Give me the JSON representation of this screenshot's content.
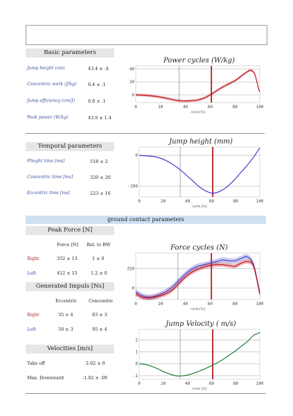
{
  "basic": {
    "title": "Basic parameters",
    "rows": [
      {
        "label": "Jump height (cm)",
        "value": "43.4 ± .4"
      },
      {
        "label": "Concentric work (J/kg)",
        "value": "6.4 ± .1"
      },
      {
        "label": "Jump efficiency (cm/J)",
        "value": "6.8 ± .1"
      },
      {
        "label": "Peak power (W/kg)",
        "value": "43.9 ± 1.4"
      }
    ]
  },
  "temporal": {
    "title": "Temporal parameters",
    "rows": [
      {
        "label": "Flieght time [ms]",
        "value": "518 ± 2"
      },
      {
        "label": "Concentric time [ms]",
        "value": "320 ± 20"
      },
      {
        "label": "Eccentric time [ms]",
        "value": "223 ± 16"
      }
    ]
  },
  "ground_band": "ground contact parameters",
  "peak_force": {
    "title": "Peak Force [N]",
    "col1": "Force [N]",
    "col2": "Rel. to BW",
    "rows": [
      {
        "label": "Right",
        "v1": "352 ± 13",
        "v2": "1 ± 0"
      },
      {
        "label": "Left",
        "v1": "412 ± 15",
        "v2": "1.2 ± 0"
      }
    ]
  },
  "impuls": {
    "title": "Generated Impuls [Ns]",
    "col1": "Eccentric",
    "col2": "Concentric",
    "rows": [
      {
        "label": "Right",
        "v1": "35 ± 4",
        "v2": "83 ± 3"
      },
      {
        "label": "Left",
        "v1": "50 ± 3",
        "v2": "95 ± 4"
      }
    ]
  },
  "velocities": {
    "title": "Velocities [m/s]",
    "rows": [
      {
        "label": "Take off",
        "value": "2.62 ± 0"
      },
      {
        "label": "Max. Downward",
        "value": "-1.02 ± .09"
      }
    ]
  },
  "chart_data": [
    {
      "id": "power",
      "type": "line",
      "title": "Power cycles (W/kg)",
      "xlabel": "cycle [%]",
      "xlim": [
        0,
        100
      ],
      "ylim": [
        -12,
        45
      ],
      "xticks": [
        0,
        20,
        40,
        60,
        80,
        100
      ],
      "yticks": [
        0,
        20,
        40
      ],
      "vlines": [
        {
          "x": 35,
          "color": "#a8a8a8"
        },
        {
          "x": 61,
          "color": "#b0181e"
        }
      ],
      "series": [
        {
          "color": "#c0141c",
          "band": 2.2,
          "x": [
            0,
            10,
            20,
            30,
            35,
            40,
            45,
            50,
            55,
            60,
            65,
            70,
            75,
            80,
            85,
            90,
            93,
            96,
            99,
            100
          ],
          "y": [
            0,
            -1,
            -3.5,
            -7.5,
            -9,
            -9.5,
            -9,
            -8,
            -5,
            0,
            6,
            12,
            17,
            22,
            29,
            36,
            38,
            32,
            10,
            5
          ]
        }
      ]
    },
    {
      "id": "height",
      "type": "line",
      "title": "Jump height (mm)",
      "xlabel": "cycle [%]",
      "xlim": [
        0,
        100
      ],
      "ylim": [
        -270,
        55
      ],
      "xticks": [
        0,
        20,
        40,
        60,
        80,
        100
      ],
      "yticks": [
        0,
        -200
      ],
      "vlines": [
        {
          "x": 34,
          "color": "#a8a8a8"
        },
        {
          "x": 61,
          "color": "#b0181e"
        }
      ],
      "series": [
        {
          "color": "#4a43c8",
          "band": 4,
          "x": [
            0,
            10,
            15,
            20,
            25,
            30,
            35,
            40,
            45,
            50,
            55,
            60,
            65,
            70,
            75,
            80,
            85,
            90,
            95,
            100
          ],
          "y": [
            0,
            -5,
            -12,
            -25,
            -45,
            -70,
            -100,
            -135,
            -170,
            -205,
            -230,
            -245,
            -240,
            -220,
            -190,
            -150,
            -105,
            -60,
            -10,
            50
          ]
        }
      ]
    },
    {
      "id": "force",
      "type": "line",
      "title": "Force cycles (N)",
      "xlabel": "cycle [%]",
      "xlim": [
        0,
        100
      ],
      "ylim": [
        -150,
        450
      ],
      "xticks": [
        0,
        20,
        40,
        60,
        80,
        100
      ],
      "yticks": [
        0,
        250
      ],
      "vlines": [
        {
          "x": 34,
          "color": "#a8a8a8"
        },
        {
          "x": 61,
          "color": "#b0181e"
        }
      ],
      "series": [
        {
          "color": "#4a43c8",
          "band": 35,
          "x": [
            0,
            5,
            10,
            15,
            20,
            25,
            30,
            35,
            40,
            45,
            50,
            55,
            60,
            65,
            70,
            75,
            80,
            85,
            90,
            95,
            100
          ],
          "y": [
            -50,
            -100,
            -120,
            -110,
            -80,
            -40,
            20,
            100,
            180,
            240,
            280,
            300,
            320,
            340,
            360,
            350,
            350,
            380,
            400,
            300,
            -60
          ]
        },
        {
          "color": "#c0141c",
          "band": 30,
          "x": [
            0,
            5,
            10,
            15,
            20,
            25,
            30,
            35,
            40,
            45,
            50,
            55,
            60,
            65,
            70,
            75,
            80,
            85,
            90,
            95,
            100
          ],
          "y": [
            -80,
            -120,
            -130,
            -120,
            -100,
            -70,
            -20,
            60,
            140,
            200,
            240,
            270,
            290,
            300,
            300,
            290,
            280,
            320,
            340,
            280,
            -80
          ]
        }
      ]
    },
    {
      "id": "velocity",
      "type": "line",
      "title": "Jump Velocity ( m/s)",
      "xlabel": "cycle [%]",
      "xlim": [
        0,
        100
      ],
      "ylim": [
        -1.3,
        2.9
      ],
      "xticks": [
        0,
        20,
        40,
        60,
        80,
        100
      ],
      "yticks": [
        -1,
        0,
        1,
        2
      ],
      "vlines": [
        {
          "x": 34,
          "color": "#a8a8a8"
        },
        {
          "x": 61,
          "color": "#b0181e"
        }
      ],
      "series": [
        {
          "color": "#1f7a36",
          "band": 0,
          "x": [
            0,
            5,
            10,
            15,
            20,
            25,
            30,
            35,
            40,
            45,
            50,
            55,
            60,
            65,
            70,
            75,
            80,
            85,
            90,
            95,
            100
          ],
          "y": [
            0,
            -0.05,
            -0.2,
            -0.4,
            -0.65,
            -0.85,
            -1,
            -1.02,
            -0.95,
            -0.8,
            -0.6,
            -0.4,
            -0.15,
            0.1,
            0.4,
            0.75,
            1.1,
            1.5,
            1.9,
            2.4,
            2.62
          ]
        }
      ]
    }
  ]
}
